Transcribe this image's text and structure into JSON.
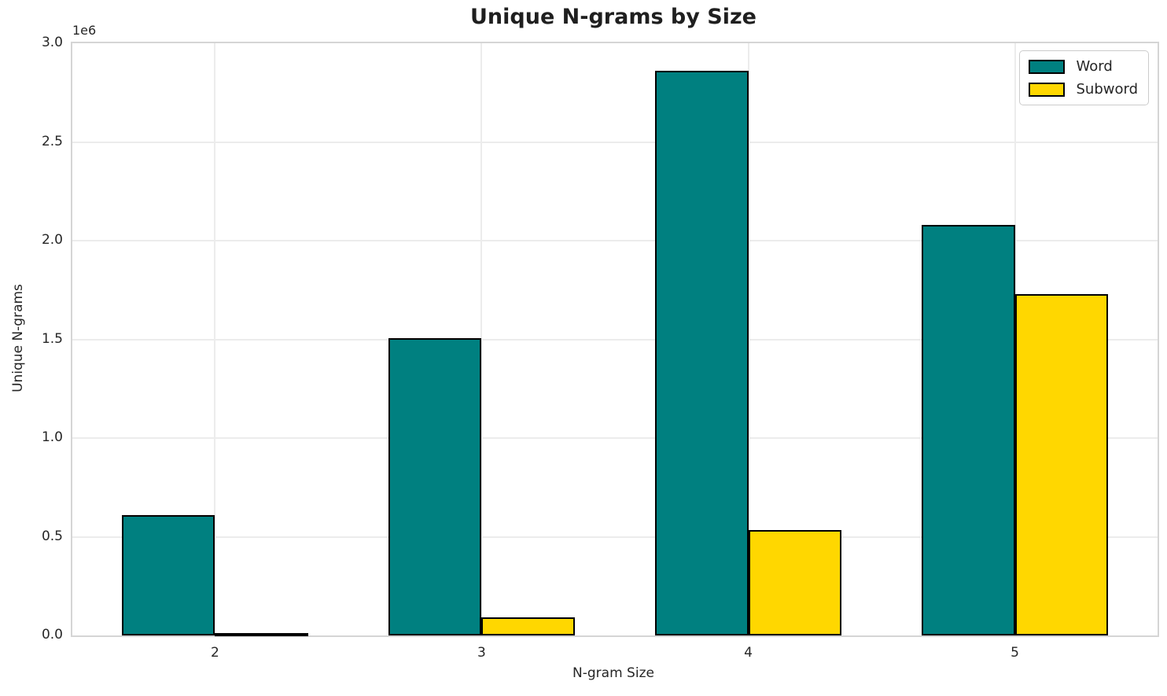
{
  "chart_data": {
    "type": "bar",
    "title": "Unique N-grams by Size",
    "xlabel": "N-gram Size",
    "ylabel": "Unique N-grams",
    "y_offset_label": "1e6",
    "categories": [
      "2",
      "3",
      "4",
      "5"
    ],
    "series": [
      {
        "name": "Word",
        "color": "#008080",
        "values": [
          610000,
          1505000,
          2860000,
          2080000
        ]
      },
      {
        "name": "Subword",
        "color": "#FFD700",
        "values": [
          12000,
          92000,
          535000,
          1730000
        ]
      }
    ],
    "bar_edge_color": "#000000",
    "bar_width": 0.35,
    "xlim": [
      -0.535,
      3.535
    ],
    "ylim": [
      0,
      3000000
    ],
    "yticks": [
      {
        "value": 0,
        "label": "0.0"
      },
      {
        "value": 500000,
        "label": "0.5"
      },
      {
        "value": 1000000,
        "label": "1.0"
      },
      {
        "value": 1500000,
        "label": "1.5"
      },
      {
        "value": 2000000,
        "label": "2.0"
      },
      {
        "value": 2500000,
        "label": "2.5"
      },
      {
        "value": 3000000,
        "label": "3.0"
      }
    ],
    "grid": true,
    "legend": {
      "position": "upper right",
      "entries": [
        "Word",
        "Subword"
      ]
    },
    "colors": {
      "grid": "#ececec",
      "spine": "#d5d5d5",
      "text": "#262626",
      "title": "#1f1f1f"
    }
  }
}
